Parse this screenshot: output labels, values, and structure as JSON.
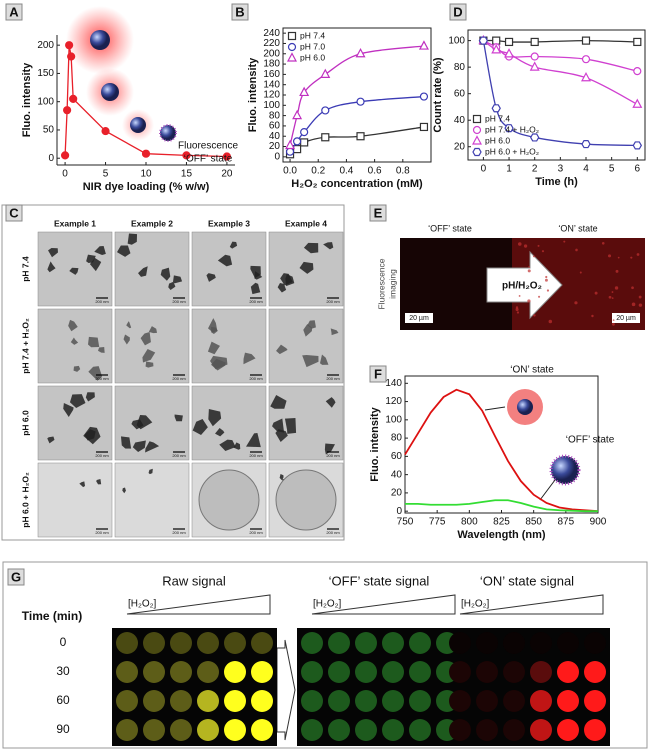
{
  "chart_data": [
    {
      "type": "line",
      "label": "A",
      "ylabel": "Fluo. intensity",
      "xlabel": "NIR dye loading (% w/w)",
      "annotation": [
        "Fluorescence",
        "‘OFF’ state"
      ],
      "x": [
        0,
        0.25,
        0.5,
        0.75,
        1,
        5,
        10,
        15,
        20
      ],
      "series": [
        {
          "color": "#e8202a",
          "marker": "circle",
          "filled": true,
          "values": [
            5,
            85,
            200,
            180,
            105,
            48,
            8,
            5,
            3
          ]
        }
      ],
      "xlim": [
        -1,
        21
      ],
      "ylim": [
        -12,
        218
      ],
      "xticks": [
        0,
        5,
        10,
        15,
        20
      ],
      "yticks": [
        0,
        50,
        100,
        150,
        200
      ]
    },
    {
      "type": "scatter",
      "label": "B",
      "ylabel": "Fluo. intensity",
      "xlabel": "H₂O₂ concentration (mM)",
      "x": [
        0,
        0.05,
        0.1,
        0.25,
        0.5,
        0.95
      ],
      "series": [
        {
          "name": "pH 7.4",
          "color": "#333333",
          "marker": "square",
          "values": [
            5,
            15,
            28,
            38,
            40,
            58
          ]
        },
        {
          "name": "pH 7.0",
          "color": "#3b3bb5",
          "marker": "circle",
          "values": [
            10,
            30,
            48,
            90,
            107,
            117
          ]
        },
        {
          "name": "pH 6.0",
          "color": "#c030c0",
          "marker": "triangle",
          "values": [
            22,
            80,
            125,
            160,
            200,
            215
          ]
        }
      ],
      "xlim": [
        -0.05,
        1.0
      ],
      "ylim": [
        -10,
        250
      ],
      "xticks": [
        {
          "value": 0,
          "label": "0.0"
        },
        0.2,
        0.4,
        0.6,
        0.8
      ],
      "yticks": [
        0,
        20,
        40,
        60,
        80,
        100,
        120,
        140,
        160,
        180,
        200,
        220,
        240
      ],
      "box": true,
      "smooth": true,
      "legend": "upper left"
    },
    {
      "type": "scatter",
      "label": "D",
      "ylabel": "Count rate (%)",
      "xlabel": "Time (h)",
      "x": [
        0,
        0.5,
        1,
        2,
        4,
        6
      ],
      "series": [
        {
          "name": "pH 7.4",
          "color": "#333333",
          "marker": "square",
          "values": [
            100,
            100,
            99,
            99,
            100,
            99
          ]
        },
        {
          "name": "pH 7.4 + H₂O₂",
          "color": "#d040d0",
          "marker": "circle",
          "values": [
            100,
            95,
            88,
            88,
            86,
            77
          ]
        },
        {
          "name": "pH 6.0",
          "color": "#d040d0",
          "marker": "triangle",
          "values": [
            100,
            93,
            90,
            80,
            72,
            52
          ]
        },
        {
          "name": "pH 6.0 + H₂O₂",
          "color": "#4040b0",
          "marker": "hexagon",
          "values": [
            100,
            49,
            34,
            27,
            22,
            21
          ]
        }
      ],
      "xlim": [
        -0.6,
        6.3
      ],
      "ylim": [
        10,
        108
      ],
      "xticks": [
        0,
        1,
        2,
        3,
        4,
        5,
        6
      ],
      "yticks": [
        20,
        40,
        60,
        80,
        100
      ],
      "box": true,
      "smooth": true,
      "legend": "lower left"
    },
    {
      "type": "line",
      "label": "F",
      "ylabel": "Fluo. intensity",
      "xlabel": "Wavelength (nm)",
      "annotation": [
        "‘ON’ state",
        "‘OFF’ state"
      ],
      "x": [
        750,
        760,
        770,
        780,
        790,
        800,
        810,
        820,
        830,
        840,
        850,
        860,
        870,
        880,
        890,
        900
      ],
      "series": [
        {
          "color": "#dd1111",
          "values": [
            62,
            85,
            108,
            125,
            133,
            128,
            110,
            82,
            55,
            33,
            18,
            9,
            4,
            2,
            1,
            0
          ]
        },
        {
          "color": "#33dd33",
          "values": [
            8,
            8,
            7,
            7,
            7,
            8,
            10,
            12,
            12,
            9,
            5,
            2,
            1,
            0.5,
            0,
            0
          ]
        }
      ],
      "xlim": [
        750,
        900
      ],
      "ylim": [
        -2,
        148
      ],
      "xticks": [
        750,
        775,
        800,
        825,
        850,
        875,
        900
      ],
      "yticks": [
        0,
        20,
        40,
        60,
        80,
        100,
        120,
        140
      ],
      "box": true
    }
  ],
  "panel_c": {
    "label": "C",
    "columns": [
      "Example 1",
      "Example 2",
      "Example 3",
      "Example 4"
    ],
    "rows": [
      "pH 7.4",
      "pH 7.4 + H₂O₂",
      "pH 6.0",
      "pH 6.0 + H₂O₂"
    ],
    "scale_bar": "200 nm"
  },
  "panel_e": {
    "label": "E",
    "left_title": "‘OFF’ state",
    "right_title": "‘ON’ state",
    "side_label": [
      "Fluorescence",
      "imaging"
    ],
    "arrow_label": "pH/H₂O₂",
    "scale_bar": "20 µm"
  },
  "panel_g": {
    "label": "G",
    "titles": [
      "Raw signal",
      "‘OFF’ state signal",
      "‘ON’ state signal"
    ],
    "gradient_label": "[H₂O₂]",
    "time_label": "Time (min)",
    "times": [
      "0",
      "30",
      "60",
      "90"
    ]
  }
}
